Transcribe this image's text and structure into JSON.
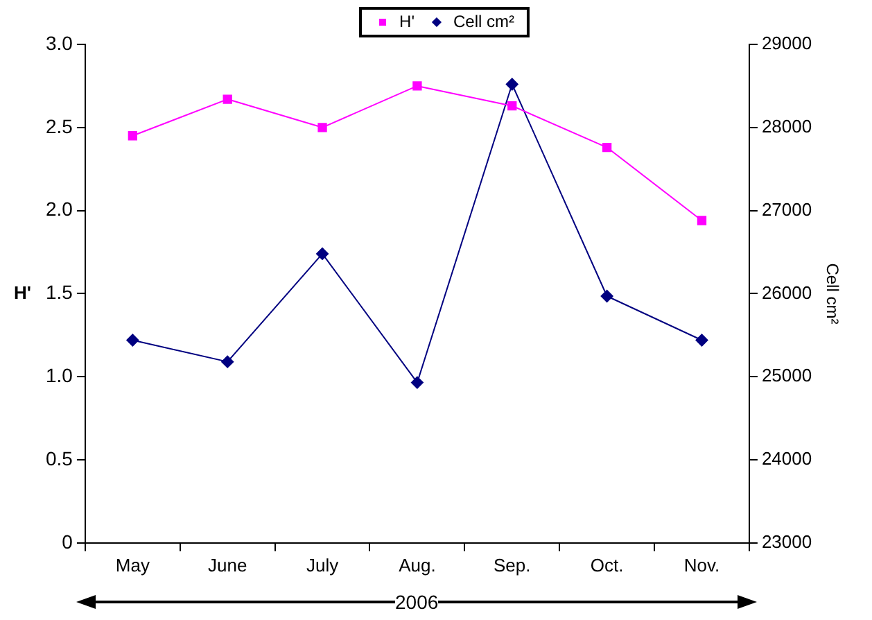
{
  "chart_data": {
    "type": "line",
    "categories": [
      "May",
      "June",
      "July",
      "Aug.",
      "Sep.",
      "Oct.",
      "Nov."
    ],
    "series": [
      {
        "name": "H'",
        "color": "#ff00ff",
        "marker": "square",
        "values": [
          2.45,
          2.67,
          2.5,
          2.75,
          2.63,
          2.38,
          1.94
        ]
      },
      {
        "name": "Cell cm²",
        "color": "#000080",
        "marker": "diamond",
        "axis": "y2",
        "values": [
          25440,
          25180,
          26480,
          24930,
          28520,
          25970,
          25440
        ]
      }
    ],
    "ylabel": "H'",
    "y2label": "Cell cm²",
    "ylim": [
      0,
      3
    ],
    "yticks": [
      0,
      {
        "value": 0.5,
        "label": "0.5"
      },
      {
        "value": 1,
        "label": "1.0"
      },
      {
        "value": 1.5,
        "label": "1.5"
      },
      {
        "value": 2,
        "label": "2.0"
      },
      {
        "value": 2.5,
        "label": "2.5"
      },
      {
        "value": 3,
        "label": "3.0"
      }
    ],
    "y2lim": [
      23000,
      29000
    ],
    "y2ticks": [
      23000,
      24000,
      25000,
      26000,
      27000,
      28000,
      29000
    ],
    "legend": "top",
    "annotations": [
      "2006"
    ]
  }
}
